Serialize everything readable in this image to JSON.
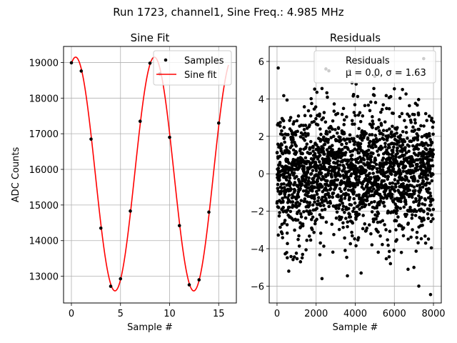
{
  "figure": {
    "suptitle": "Run 1723, channel1, Sine Freq.: 4.985 MHz"
  },
  "chart_data": [
    {
      "type": "scatter",
      "title": "Sine Fit",
      "xlabel": "Sample #",
      "ylabel": "ADC Counts",
      "xlim": [
        -0.8,
        16.8
      ],
      "ylim": [
        12250,
        19450
      ],
      "xticks": [
        0,
        5,
        10,
        15
      ],
      "yticks": [
        13000,
        14000,
        15000,
        16000,
        17000,
        18000,
        19000
      ],
      "xtick_labels": [
        "0",
        "5",
        "10",
        "15"
      ],
      "ytick_labels": [
        "13000",
        "14000",
        "15000",
        "16000",
        "17000",
        "18000",
        "19000"
      ],
      "grid": true,
      "legend": {
        "placement": "upper right",
        "entries": [
          "Samples",
          "Sine fit"
        ]
      },
      "series": [
        {
          "name": "Samples",
          "kind": "scatter",
          "color": "#000000",
          "x": [
            0,
            1,
            2,
            3,
            4,
            5,
            6,
            7,
            8,
            9,
            10,
            11,
            12,
            13,
            14,
            15
          ],
          "y": [
            18990,
            18760,
            16850,
            14350,
            12720,
            12930,
            14830,
            17350,
            18980,
            18680,
            16900,
            14420,
            12760,
            12900,
            14800,
            17300
          ]
        },
        {
          "name": "Sine fit",
          "kind": "line",
          "color": "#ff0000",
          "model": {
            "offset": 15870,
            "amplitude": 3280,
            "period_samples": 8.02,
            "peak_x": 0.43,
            "x_range": [
              0,
              16
            ]
          }
        }
      ]
    },
    {
      "type": "scatter",
      "title": "Residuals",
      "xlabel": "Sample #",
      "ylabel": "",
      "xlim": [
        -400,
        8400
      ],
      "ylim": [
        -6.9,
        6.8
      ],
      "xticks": [
        0,
        2000,
        4000,
        6000,
        8000
      ],
      "yticks": [
        -6,
        -4,
        -2,
        0,
        2,
        4,
        6
      ],
      "xtick_labels": [
        "0",
        "2000",
        "4000",
        "6000",
        "8000"
      ],
      "ytick_labels": [
        "−6",
        "−4",
        "−2",
        "0",
        "2",
        "4",
        "6"
      ],
      "grid": true,
      "legend": {
        "placement": "upper right",
        "entries": [
          "Residuals",
          "μ = 0.0, σ = 1.63"
        ]
      },
      "series": [
        {
          "name": "Residuals",
          "color": "#000000",
          "n_points": 8000,
          "mean": 0.0,
          "std": 1.63,
          "notable_points": {
            "x": [
              60,
              2500,
              3700,
              7500,
              7850,
              2650,
              5000,
              7250,
              4300,
              2300,
              600,
              6700,
              3600,
              5800,
              7000,
              1200
            ],
            "y": [
              5.65,
              5.6,
              5.5,
              6.15,
              -6.45,
              5.5,
              5.2,
              -6.0,
              -5.3,
              -5.6,
              -5.2,
              -5.1,
              -5.45,
              -4.8,
              -5.0,
              -4.7
            ]
          }
        }
      ]
    }
  ]
}
